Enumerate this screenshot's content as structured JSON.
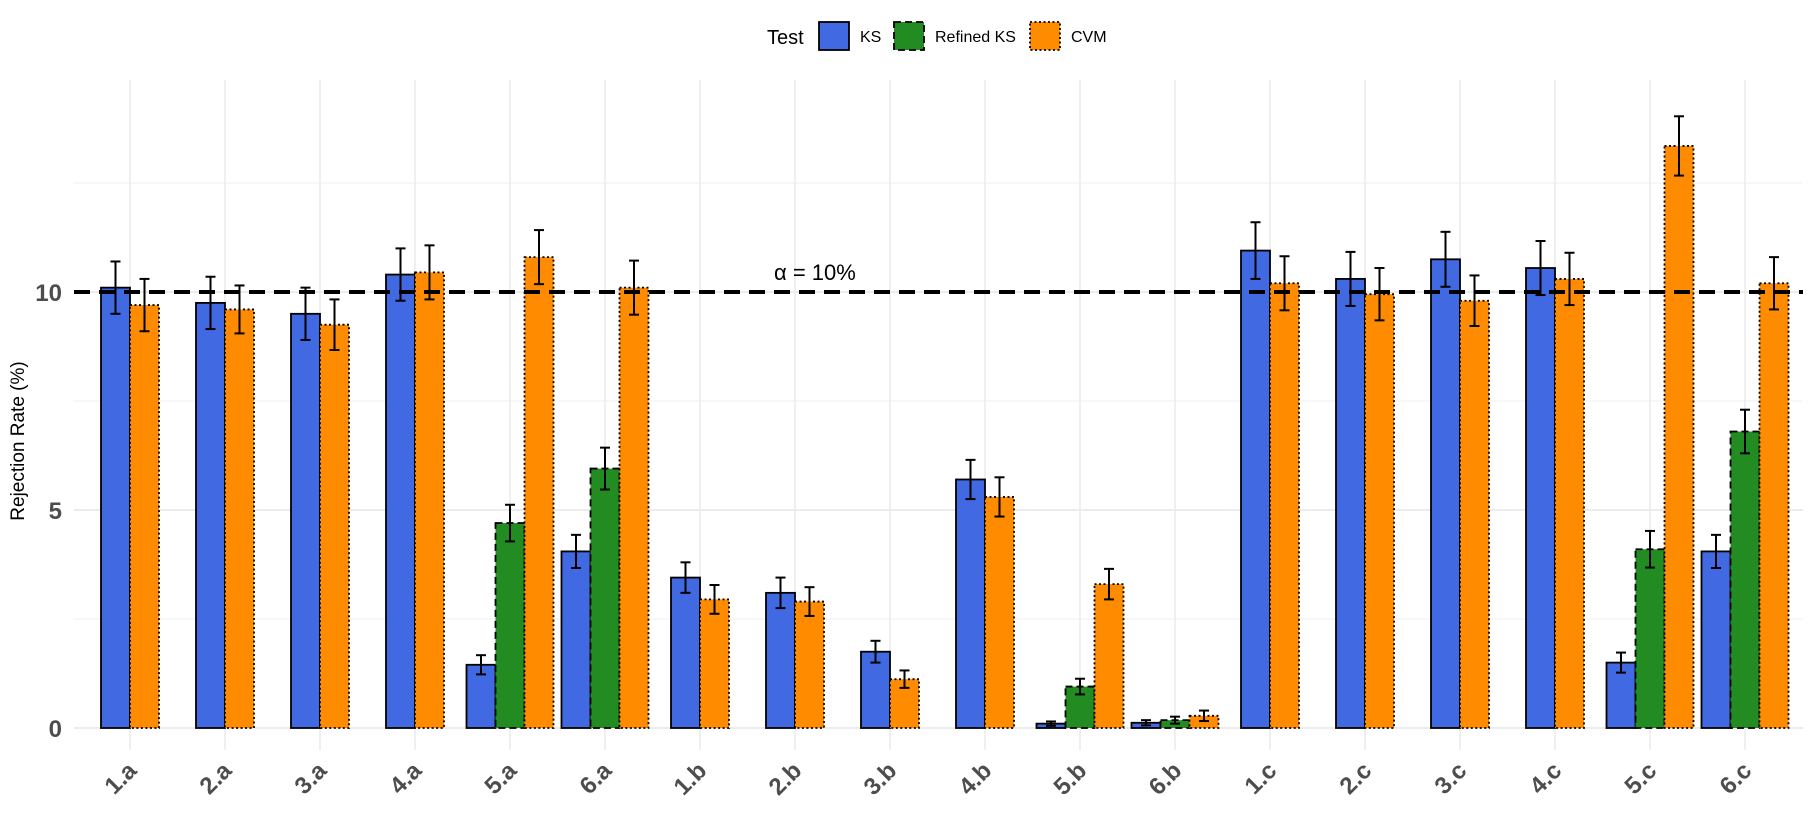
{
  "chart_data": {
    "type": "bar",
    "title": "",
    "xlabel": "",
    "ylabel": "Rejection Rate (%)",
    "ylim": [
      -0.6,
      15.2
    ],
    "yticks": [
      0,
      5,
      10
    ],
    "grid": true,
    "legend": {
      "title": "Test",
      "placement": "top"
    },
    "reference_line": {
      "value": 10,
      "label": "α = 10%",
      "style": "dashed"
    },
    "categories": [
      "1.a",
      "2.a",
      "3.a",
      "4.a",
      "5.a",
      "6.a",
      "1.b",
      "2.b",
      "3.b",
      "4.b",
      "5.b",
      "6.b",
      "1.c",
      "2.c",
      "3.c",
      "4.c",
      "5.c",
      "6.c"
    ],
    "series": [
      {
        "name": "KS",
        "color": "#4169E1",
        "border": "solid",
        "values": [
          10.1,
          9.75,
          9.5,
          10.4,
          1.45,
          4.05,
          3.45,
          3.1,
          1.75,
          5.7,
          0.1,
          0.12,
          10.95,
          10.3,
          10.75,
          10.55,
          1.5,
          4.05
        ],
        "errors": [
          0.6,
          0.6,
          0.6,
          0.6,
          0.22,
          0.38,
          0.35,
          0.35,
          0.25,
          0.45,
          0.05,
          0.06,
          0.65,
          0.62,
          0.63,
          0.62,
          0.23,
          0.38
        ]
      },
      {
        "name": "Refined KS",
        "color": "#228B22",
        "border": "dashed",
        "values": [
          null,
          null,
          null,
          null,
          4.7,
          5.95,
          null,
          null,
          null,
          null,
          0.95,
          0.18,
          null,
          null,
          null,
          null,
          4.1,
          6.8
        ],
        "errors": [
          null,
          null,
          null,
          null,
          0.42,
          0.48,
          null,
          null,
          null,
          null,
          0.18,
          0.08,
          null,
          null,
          null,
          null,
          0.42,
          0.5
        ]
      },
      {
        "name": "CVM",
        "color": "#FF8C00",
        "border": "dotted",
        "values": [
          9.7,
          9.6,
          9.25,
          10.45,
          10.8,
          10.1,
          2.95,
          2.9,
          1.12,
          5.3,
          3.3,
          0.28,
          10.2,
          9.95,
          9.8,
          10.3,
          13.35,
          10.2
        ],
        "errors": [
          0.6,
          0.55,
          0.58,
          0.62,
          0.62,
          0.62,
          0.33,
          0.33,
          0.2,
          0.45,
          0.35,
          0.12,
          0.62,
          0.6,
          0.58,
          0.6,
          0.68,
          0.6
        ]
      }
    ]
  }
}
